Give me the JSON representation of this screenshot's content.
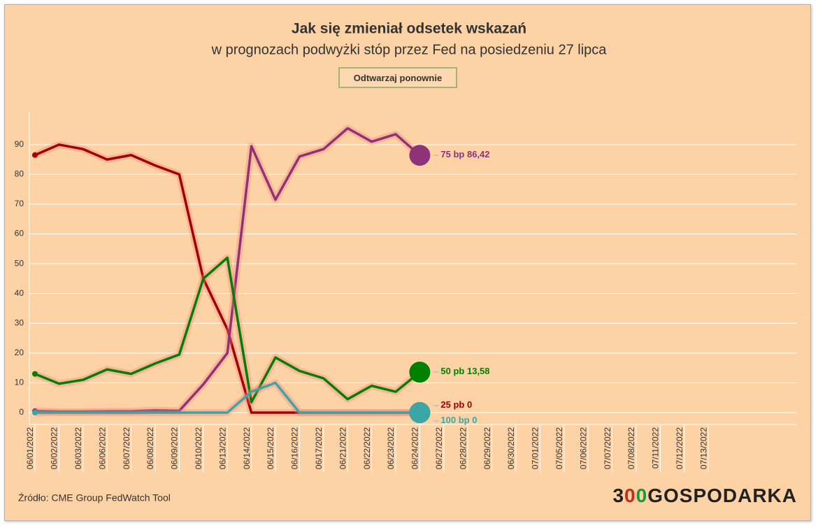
{
  "chart_data": {
    "type": "line",
    "title": "Jak się zmieniał odsetek wskazań",
    "subtitle": "w prognozach podwyżki stóp przez Fed na posiedzeniu 27 lipca",
    "button": "Odtwarzaj ponownie",
    "source": "Źródło: CME Group FedWatch Tool",
    "logo": [
      "3",
      "0",
      "0",
      "GOSPODARKA"
    ],
    "categories": [
      "06/01/2022",
      "06/02/2022",
      "06/03/2022",
      "06/06/2022",
      "06/07/2022",
      "06/08/2022",
      "06/09/2022",
      "06/10/2022",
      "06/13/2022",
      "06/14/2022",
      "06/15/2022",
      "06/16/2022",
      "06/17/2022",
      "06/21/2022",
      "06/22/2022",
      "06/23/2022",
      "06/24/2022",
      "06/27/2022",
      "06/28/2022",
      "06/29/2022",
      "06/30/2022",
      "07/01/2022",
      "07/05/2022",
      "07/06/2022",
      "07/07/2022",
      "07/08/2022",
      "07/11/2022",
      "07/12/2022",
      "07/13/2022"
    ],
    "ylim": [
      -4,
      101
    ],
    "yticks": [
      0,
      10,
      20,
      30,
      40,
      50,
      60,
      70,
      80,
      90
    ],
    "grid": true,
    "series": [
      {
        "name": "25 pb",
        "color": "#a30000",
        "values": [
          86.5,
          90,
          88.5,
          85,
          86.5,
          83,
          80,
          45,
          28,
          0,
          0,
          0,
          0,
          0,
          0,
          0,
          0,
          null,
          null,
          null,
          null,
          null,
          null,
          null,
          null,
          null,
          null,
          null,
          null
        ],
        "value_labels": [
          null,
          null,
          null,
          null,
          null,
          null,
          null,
          null,
          null,
          null,
          null,
          null,
          null,
          null,
          null,
          null,
          "0",
          null,
          null,
          null,
          null,
          null,
          null,
          null,
          null,
          null,
          null,
          null,
          null
        ]
      },
      {
        "name": "75 bp",
        "color": "#8e3377",
        "values": [
          0.5,
          0.3,
          0.3,
          0.4,
          0.4,
          0.8,
          0.6,
          9.5,
          20,
          89.5,
          71.5,
          86,
          88.5,
          95.5,
          91,
          93.5,
          86.42,
          null,
          null,
          null,
          null,
          null,
          null,
          null,
          null,
          null,
          null,
          null,
          null
        ],
        "value_labels": [
          null,
          null,
          null,
          null,
          null,
          null,
          null,
          null,
          null,
          null,
          null,
          null,
          null,
          null,
          null,
          null,
          "86,42",
          null,
          null,
          null,
          null,
          null,
          null,
          null,
          null,
          null,
          null,
          null,
          null
        ]
      },
      {
        "name": "50 pb",
        "color": "#008000",
        "values": [
          13,
          9.7,
          11,
          14.5,
          13,
          16.5,
          19.5,
          45,
          52,
          3.5,
          18.5,
          14,
          11.5,
          4.5,
          9,
          7,
          13.58,
          null,
          null,
          null,
          null,
          null,
          null,
          null,
          null,
          null,
          null,
          null,
          null
        ],
        "value_labels": [
          null,
          null,
          null,
          null,
          null,
          null,
          null,
          null,
          null,
          null,
          null,
          null,
          null,
          null,
          null,
          null,
          "13,58",
          null,
          null,
          null,
          null,
          null,
          null,
          null,
          null,
          null,
          null,
          null,
          null
        ]
      },
      {
        "name": "100 bp",
        "color": "#3aa6a6",
        "values": [
          0,
          0,
          0,
          0,
          0,
          0,
          0,
          0,
          0,
          7,
          10,
          0,
          0,
          0,
          0,
          0,
          0,
          null,
          null,
          null,
          null,
          null,
          null,
          null,
          null,
          null,
          null,
          null,
          null
        ],
        "value_labels": [
          null,
          null,
          null,
          null,
          null,
          null,
          null,
          null,
          null,
          null,
          null,
          null,
          null,
          null,
          null,
          null,
          "0",
          null,
          null,
          null,
          null,
          null,
          null,
          null,
          null,
          null,
          null,
          null,
          null
        ]
      }
    ]
  }
}
